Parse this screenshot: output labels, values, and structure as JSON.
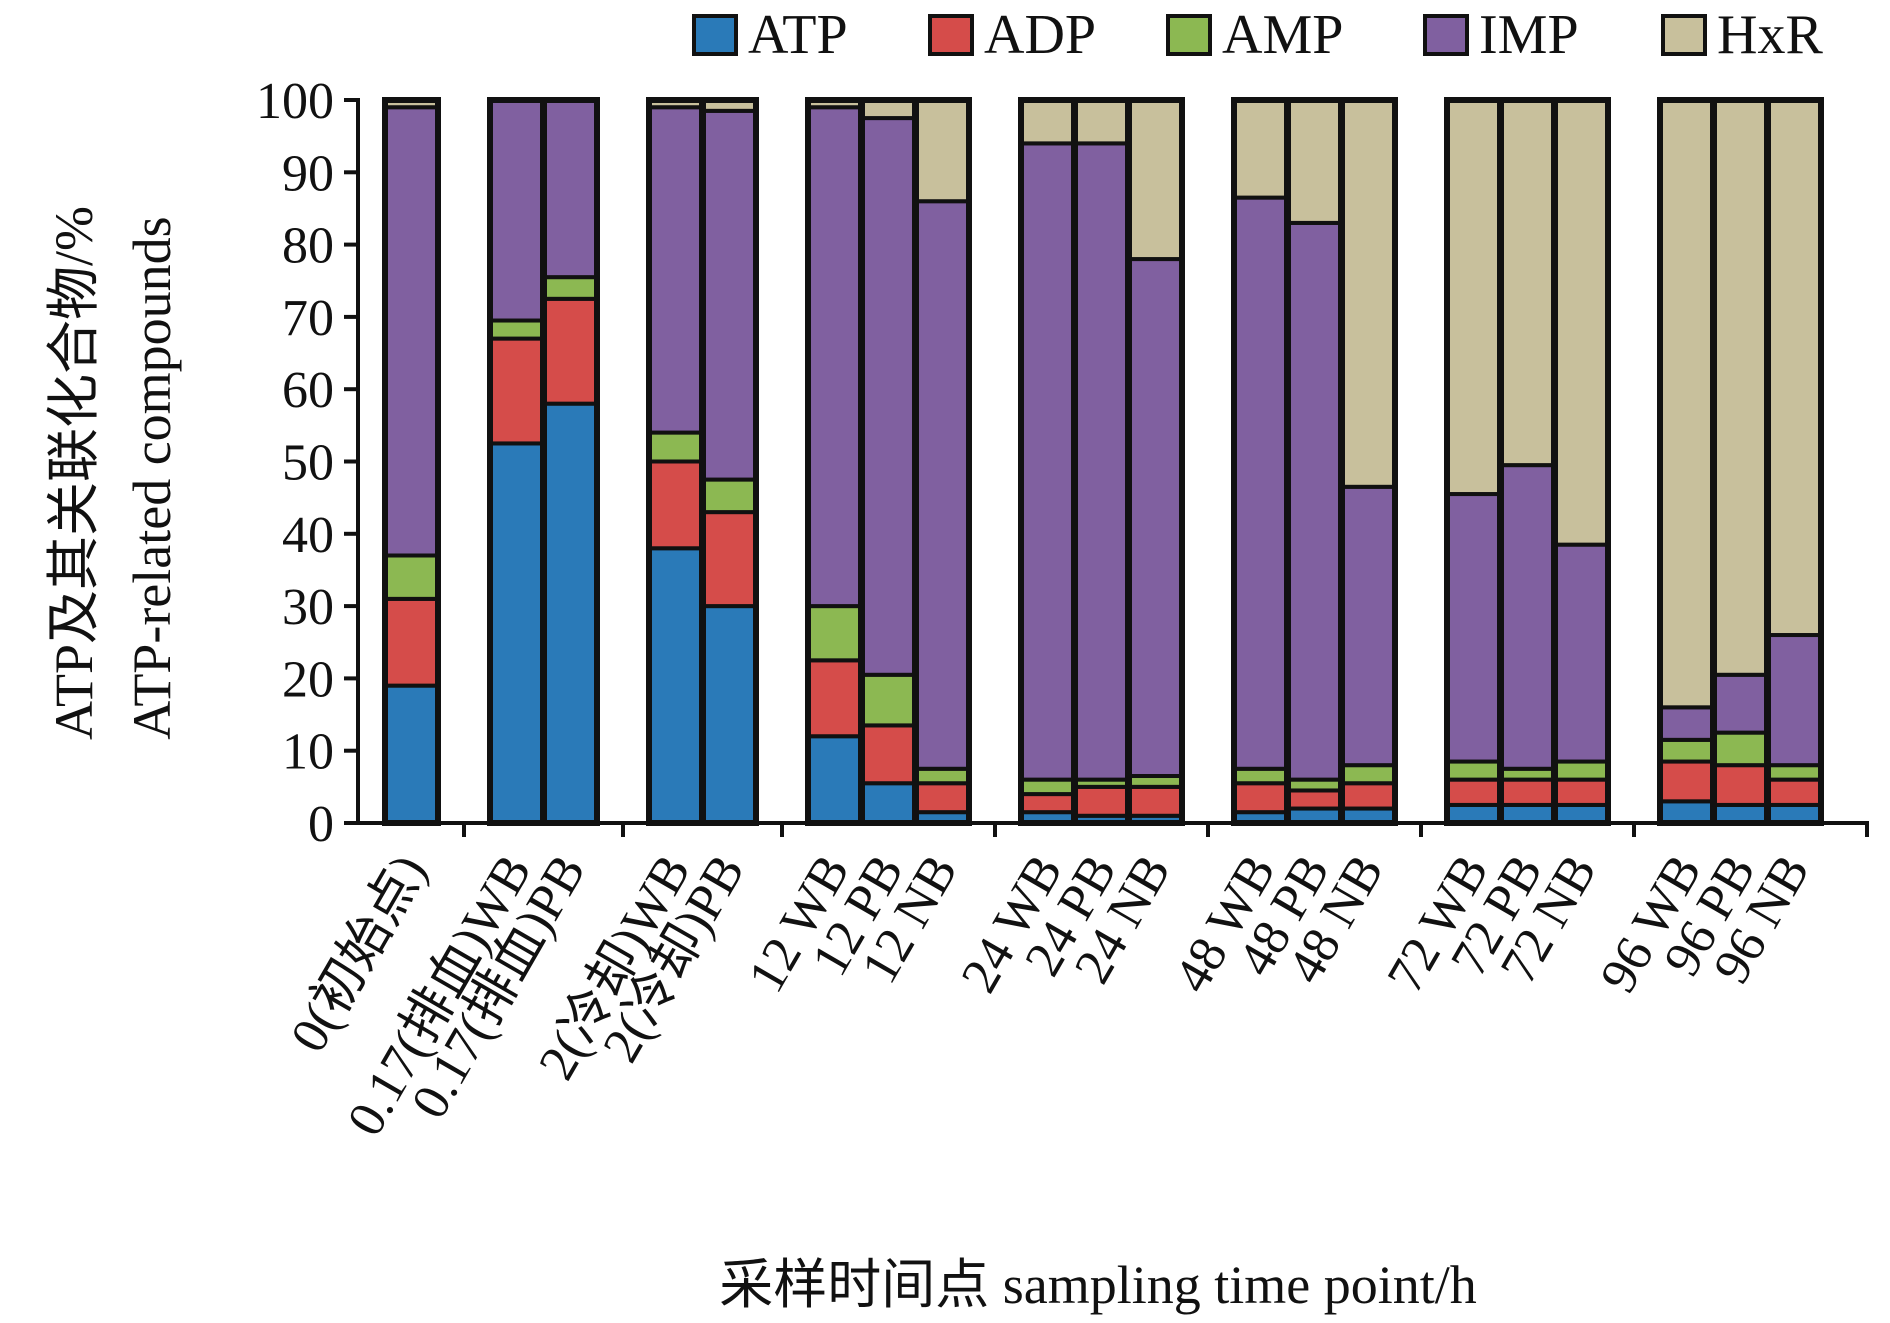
{
  "chart_data": {
    "type": "bar",
    "stacked": true,
    "ylabel": [
      "ATP及其关联化合物/%",
      "ATP-related compounds"
    ],
    "xlabel": "采样时间点 sampling time point/h",
    "ylim": [
      0,
      100
    ],
    "yticks": [
      0,
      10,
      20,
      30,
      40,
      50,
      60,
      70,
      80,
      90,
      100
    ],
    "legend_position": "top",
    "grid": false,
    "series": [
      {
        "name": "ATP",
        "color": "#2A7AB8"
      },
      {
        "name": "ADP",
        "color": "#D54C4A"
      },
      {
        "name": "AMP",
        "color": "#8CB852"
      },
      {
        "name": "IMP",
        "color": "#8060A0"
      },
      {
        "name": "HxR",
        "color": "#C8C09C"
      }
    ],
    "groups": [
      {
        "bars": [
          {
            "label": "0(初始点)",
            "values": [
              19,
              12,
              6,
              62,
              1
            ]
          }
        ]
      },
      {
        "bars": [
          {
            "label": "0.17(排血)WB",
            "values": [
              52.5,
              14.5,
              2.5,
              30.5,
              0
            ]
          },
          {
            "label": "0.17(排血)PB",
            "values": [
              58,
              14.5,
              3,
              24.5,
              0
            ]
          }
        ]
      },
      {
        "bars": [
          {
            "label": "2(冷却)WB",
            "values": [
              38,
              12,
              4,
              45,
              1
            ]
          },
          {
            "label": "2(冷却)PB",
            "values": [
              30,
              13,
              4.5,
              51,
              1.5
            ]
          }
        ]
      },
      {
        "bars": [
          {
            "label": "12 WB",
            "values": [
              12,
              10.5,
              7.5,
              69,
              1
            ]
          },
          {
            "label": "12 PB",
            "values": [
              5.5,
              8,
              7,
              77,
              2.5
            ]
          },
          {
            "label": "12 NB",
            "values": [
              1.5,
              4,
              2,
              78.5,
              14
            ]
          }
        ]
      },
      {
        "bars": [
          {
            "label": "24 WB",
            "values": [
              1.5,
              2.5,
              2,
              88,
              6
            ]
          },
          {
            "label": "24 PB",
            "values": [
              1,
              4,
              1,
              88,
              6
            ]
          },
          {
            "label": "24 NB",
            "values": [
              1,
              4,
              1.5,
              71.5,
              22
            ]
          }
        ]
      },
      {
        "bars": [
          {
            "label": "48 WB",
            "values": [
              1.5,
              4,
              2,
              79,
              13.5
            ]
          },
          {
            "label": "48 PB",
            "values": [
              2,
              2.5,
              1.5,
              77,
              17
            ]
          },
          {
            "label": "48 NB",
            "values": [
              2,
              3.5,
              2.5,
              38.5,
              53.5
            ]
          }
        ]
      },
      {
        "bars": [
          {
            "label": "72 WB",
            "values": [
              2.5,
              3.5,
              2.5,
              37,
              54.5
            ]
          },
          {
            "label": "72 PB",
            "values": [
              2.5,
              3.5,
              1.5,
              42,
              50.5
            ]
          },
          {
            "label": "72 NB",
            "values": [
              2.5,
              3.5,
              2.5,
              30,
              61.5
            ]
          }
        ]
      },
      {
        "bars": [
          {
            "label": "96 WB",
            "values": [
              3,
              5.5,
              3,
              4.5,
              84
            ]
          },
          {
            "label": "96 PB",
            "values": [
              2.5,
              5.5,
              4.5,
              8,
              79.5
            ]
          },
          {
            "label": "96 NB",
            "values": [
              2.5,
              3.5,
              2,
              18,
              74
            ]
          }
        ]
      }
    ]
  }
}
